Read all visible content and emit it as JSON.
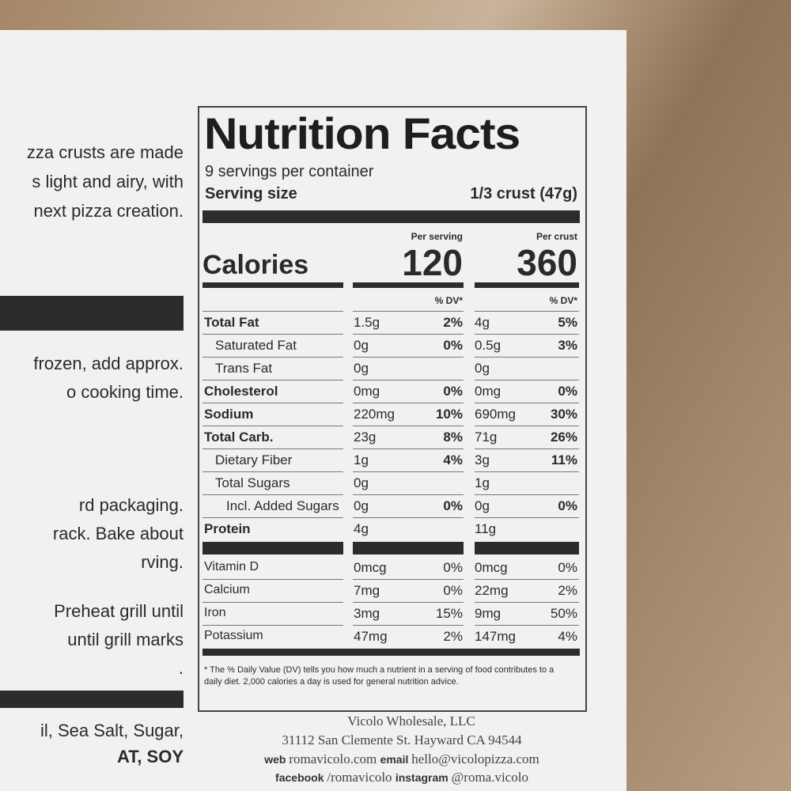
{
  "left_panel": {
    "paragraph1": [
      "zza crusts are made",
      "s light and airy, with",
      "next pizza creation."
    ],
    "paragraph2": [
      "frozen, add approx.",
      "o cooking time."
    ],
    "paragraph3": [
      "rd packaging.",
      "rack. Bake about",
      "rving."
    ],
    "paragraph4": [
      "Preheat grill until",
      "until grill marks",
      "."
    ],
    "ingredients": [
      "il, Sea Salt, Sugar,"
    ],
    "allergens": [
      "AT, SOY"
    ]
  },
  "label": {
    "title": "Nutrition Facts",
    "servings": "9 servings per container",
    "serving_size_label": "Serving size",
    "serving_size_value": "1/3 crust (47g)",
    "per_serving": "Per serving",
    "per_crust": "Per crust",
    "calories_label": "Calories",
    "calories_serving": "120",
    "calories_crust": "360",
    "dv_header": "% DV*",
    "nutrients": [
      {
        "name": "Total Fat",
        "bold": true,
        "indent": 0,
        "amount1": "1.5g",
        "dv1": "2%",
        "amount2": "4g",
        "dv2": "5%"
      },
      {
        "name": "Saturated Fat",
        "bold": false,
        "indent": 1,
        "amount1": "0g",
        "dv1": "0%",
        "amount2": "0.5g",
        "dv2": "3%"
      },
      {
        "name": "Trans Fat",
        "bold": false,
        "indent": 1,
        "amount1": "0g",
        "dv1": null,
        "amount2": "0g",
        "dv2": null
      },
      {
        "name": "Cholesterol",
        "bold": true,
        "indent": 0,
        "amount1": "0mg",
        "dv1": "0%",
        "amount2": "0mg",
        "dv2": "0%"
      },
      {
        "name": "Sodium",
        "bold": true,
        "indent": 0,
        "amount1": "220mg",
        "dv1": "10%",
        "amount2": "690mg",
        "dv2": "30%"
      },
      {
        "name": "Total Carb.",
        "bold": true,
        "indent": 0,
        "amount1": "23g",
        "dv1": "8%",
        "amount2": "71g",
        "dv2": "26%"
      },
      {
        "name": "Dietary Fiber",
        "bold": false,
        "indent": 1,
        "amount1": "1g",
        "dv1": "4%",
        "amount2": "3g",
        "dv2": "11%"
      },
      {
        "name": "Total Sugars",
        "bold": false,
        "indent": 1,
        "amount1": "0g",
        "dv1": null,
        "amount2": "1g",
        "dv2": null
      },
      {
        "name": "Incl. Added Sugars",
        "bold": false,
        "indent": 2,
        "amount1": "0g",
        "dv1": "0%",
        "amount2": "0g",
        "dv2": "0%"
      },
      {
        "name": "Protein",
        "bold": true,
        "indent": 0,
        "amount1": "4g",
        "dv1": null,
        "amount2": "11g",
        "dv2": null
      }
    ],
    "vitamins": [
      {
        "name": "Vitamin D",
        "amount1": "0mcg",
        "dv1": "0%",
        "amount2": "0mcg",
        "dv2": "0%"
      },
      {
        "name": "Calcium",
        "amount1": "7mg",
        "dv1": "0%",
        "amount2": "22mg",
        "dv2": "2%"
      },
      {
        "name": "Iron",
        "amount1": "3mg",
        "dv1": "15%",
        "amount2": "9mg",
        "dv2": "50%"
      },
      {
        "name": "Potassium",
        "amount1": "47mg",
        "dv1": "2%",
        "amount2": "147mg",
        "dv2": "4%"
      }
    ],
    "footnote": "* The % Daily Value (DV) tells you how much a nutrient in a serving of food contributes to a daily diet. 2,000 calories a day is used for general nutrition advice."
  },
  "footer": {
    "company": "Vicolo Wholesale, LLC",
    "address": "31112 San Clemente St. Hayward CA 94544",
    "web_label": "web",
    "web": "romavicolo.com",
    "email_label": "email",
    "email": "hello@vicolopizza.com",
    "facebook_label": "facebook",
    "facebook": "/romavicolo",
    "instagram_label": "instagram",
    "instagram": "@roma.vicolo"
  }
}
